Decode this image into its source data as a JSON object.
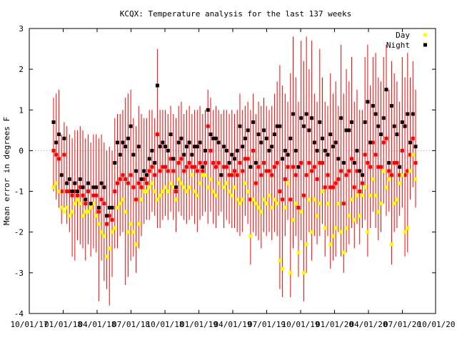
{
  "chart_data": {
    "type": "scatter",
    "title": "KCQX: Temperature analysis for the last 137 weeks",
    "xlabel": "",
    "ylabel": "Mean error in degrees F",
    "ylim": [
      -4,
      3
    ],
    "yticks": [
      "-4",
      "-3",
      "-2",
      "-1",
      "0",
      "1",
      "2",
      "3"
    ],
    "xtick_labels": [
      "10/01/17",
      "01/01/18",
      "04/01/18",
      "07/01/18",
      "10/01/18",
      "01/01/19",
      "04/01/19",
      "07/01/19",
      "10/01/19",
      "01/01/20",
      "04/01/20",
      "07/01/20",
      "10/01/20"
    ],
    "zero_line": true,
    "legend_position": "top-right",
    "colors": {
      "day": "#ffff00",
      "night": "#000000",
      "error_bar": "#ff0000",
      "zero_line": "#aaaaaa"
    },
    "series": [
      {
        "name": "Day",
        "values": [
          -0.9,
          -0.8,
          -1.0,
          -1.4,
          -1.5,
          -1.4,
          -1.6,
          -1.5,
          -1.3,
          -1.2,
          -1.3,
          -1.6,
          -1.5,
          -1.5,
          -1.4,
          -1.3,
          -1.6,
          -1.8,
          -2.0,
          -2.1,
          -2.6,
          -2.4,
          -2.0,
          -1.9,
          -1.4,
          -1.3,
          -1.2,
          -1.5,
          -2.0,
          -1.8,
          -2.0,
          -2.3,
          -1.8,
          -1.2,
          -1.0,
          -1.0,
          -0.9,
          -0.8,
          -1.0,
          -1.2,
          -1.1,
          -1.0,
          -0.9,
          -1.0,
          -0.8,
          -0.9,
          -1.2,
          -0.7,
          -0.8,
          -0.9,
          -1.0,
          -0.9,
          -0.6,
          -1.0,
          -1.1,
          -0.8,
          -0.6,
          -0.6,
          -0.9,
          -0.7,
          -1.0,
          -1.1,
          -0.8,
          -0.6,
          -0.9,
          -0.8,
          -1.0,
          -1.1,
          -0.9,
          -1.2,
          -1.3,
          -1.2,
          -0.8,
          -1.0,
          -2.1,
          -1.2,
          -1.3,
          -1.4,
          -1.5,
          -1.2,
          -1.3,
          -1.1,
          -1.4,
          -1.2,
          -1.3,
          -2.7,
          -2.9,
          -1.4,
          -0.8,
          -3.0,
          -1.7,
          -1.3,
          -2.5,
          -1.5,
          -3.0,
          -2.3,
          -1.2,
          -2.0,
          -1.2,
          -1.6,
          -1.3,
          -1.0,
          -1.9,
          -1.3,
          -2.3,
          -2.1,
          -1.9,
          -1.3,
          -2.0,
          -2.5,
          -1.9,
          -1.6,
          -1.2,
          -1.7,
          -1.1,
          -1.6,
          -1.1,
          -0.9,
          -2.0,
          -1.1,
          -0.7,
          -1.1,
          -1.5,
          -1.3,
          -0.5,
          -0.9,
          -0.7,
          -2.3,
          -1.3,
          -1.2,
          -0.8,
          -0.6,
          -2.0,
          -1.9,
          -0.5,
          -0.1,
          -0.7
        ],
        "lows": [
          -1.4,
          -1.3,
          -1.5,
          -2.0,
          -2.1,
          -2.0,
          -2.4,
          -2.2,
          -2.0,
          -1.9,
          -2.0,
          -2.3,
          -2.2,
          -2.3,
          -2.1,
          -2.0,
          -2.4,
          -2.6,
          -2.8,
          -3.0,
          -3.4,
          -3.2,
          -2.9,
          -2.7,
          -2.1,
          -2.0,
          -1.9,
          -2.3,
          -2.9,
          -2.6,
          -2.8,
          -3.1,
          -2.6,
          -1.9,
          -1.6,
          -1.6,
          -1.5,
          -1.4,
          -1.6,
          -1.9,
          -1.8,
          -1.6,
          -1.5,
          -1.6,
          -1.4,
          -1.5,
          -1.9,
          -1.3,
          -1.4,
          -1.5,
          -1.6,
          -1.5,
          -1.2,
          -1.6,
          -1.8,
          -1.4,
          -1.2,
          -1.2,
          -1.5,
          -1.3,
          -1.6,
          -1.8,
          -1.4,
          -1.2,
          -1.5,
          -1.4,
          -1.6,
          -1.8,
          -1.5,
          -1.9,
          -2.0,
          -1.9,
          -1.4,
          -1.6,
          -2.7,
          -1.8,
          -1.9,
          -2.1,
          -2.2,
          -1.8,
          -1.9,
          -1.7,
          -2.1,
          -1.8,
          -1.9,
          -3.3,
          -3.5,
          -2.0,
          -1.4,
          -3.5,
          -2.3,
          -1.9,
          -3.0,
          -2.1,
          -3.5,
          -2.8,
          -1.8,
          -2.6,
          -1.8,
          -2.2,
          -1.9,
          -1.6,
          -2.5,
          -1.9,
          -2.8,
          -2.6,
          -2.4,
          -1.8,
          -2.5,
          -2.9,
          -2.4,
          -2.1,
          -1.7,
          -2.2,
          -1.6,
          -2.1,
          -1.6,
          -1.4,
          -2.5,
          -1.6,
          -1.2,
          -1.6,
          -2.0,
          -1.8,
          -1.0,
          -1.4,
          -1.2,
          -2.7,
          -1.8,
          -1.7,
          -1.3,
          -1.1,
          -2.4,
          -2.3,
          -1.0,
          -0.6,
          -1.2
        ],
        "highs": [
          -0.4,
          -0.3,
          -0.5,
          -0.8,
          -0.9,
          -0.8,
          -1.0,
          -0.9,
          -0.7,
          -0.6,
          -0.7,
          -1.0,
          -0.9,
          -0.9,
          -0.8,
          -0.7,
          -1.0,
          -1.1,
          -1.3,
          -1.4,
          -1.9,
          -1.7,
          -1.3,
          -1.2,
          -0.8,
          -0.7,
          -0.6,
          -0.9,
          -1.3,
          -1.1,
          -1.3,
          -1.6,
          -1.1,
          -0.6,
          -0.4,
          -0.4,
          -0.4,
          -0.3,
          -0.5,
          -0.6,
          -0.5,
          -0.4,
          -0.4,
          -0.5,
          -0.3,
          -0.4,
          -0.6,
          -0.2,
          -0.3,
          -0.4,
          -0.5,
          -0.4,
          -0.1,
          -0.5,
          -0.5,
          -0.3,
          -0.1,
          -0.1,
          -0.4,
          -0.2,
          -0.5,
          -0.5,
          -0.3,
          -0.1,
          -0.4,
          -0.3,
          -0.5,
          -0.5,
          -0.4,
          -0.6,
          -0.7,
          -0.6,
          -0.3,
          -0.5,
          -1.5,
          -0.7,
          -0.8,
          -0.8,
          -0.9,
          -0.7,
          -0.8,
          -0.6,
          -0.8,
          -0.7,
          -0.8,
          -2.2,
          -2.4,
          -0.9,
          -0.3,
          -2.5,
          -1.2,
          -0.8,
          -2.0,
          -1.0,
          -2.5,
          -1.8,
          -0.7,
          -1.5,
          -0.7,
          -1.1,
          -0.8,
          -0.5,
          -1.4,
          -0.8,
          -1.8,
          -1.6,
          -1.4,
          -0.8,
          -1.5,
          -2.0,
          -1.4,
          -1.1,
          -0.7,
          -1.2,
          -0.6,
          -1.1,
          -0.6,
          -0.4,
          -1.5,
          -0.6,
          -0.2,
          -0.6,
          -1.0,
          -0.8,
          0.0,
          -0.4,
          -0.2,
          -1.8,
          -0.8,
          -0.7,
          -0.3,
          -0.1,
          -1.5,
          -1.4,
          0.0,
          0.4,
          -0.2
        ]
      },
      {
        "name": "Night",
        "values": [
          0.7,
          0.2,
          0.4,
          -0.6,
          0.3,
          -0.8,
          -0.7,
          -1.0,
          -0.8,
          -1.0,
          -0.7,
          -0.9,
          -1.2,
          -0.8,
          -1.3,
          -0.9,
          -0.9,
          -1.4,
          -0.8,
          -0.9,
          -1.6,
          -1.4,
          -1.4,
          -0.3,
          0.2,
          -0.1,
          0.2,
          0.1,
          0.3,
          0.6,
          -0.1,
          -0.5,
          0.1,
          -0.7,
          -0.5,
          -0.6,
          -0.2,
          0.0,
          -0.3,
          1.6,
          0.1,
          0.2,
          0.1,
          0.0,
          0.4,
          -0.2,
          -0.9,
          0.2,
          0.3,
          -0.1,
          0.1,
          0.2,
          -0.1,
          0.1,
          0.1,
          0.2,
          -0.4,
          0.0,
          1.0,
          0.4,
          0.3,
          0.3,
          0.2,
          -0.6,
          0.1,
          0.0,
          -0.3,
          -0.1,
          -0.2,
          0.0,
          0.6,
          0.1,
          0.3,
          0.5,
          -0.4,
          0.7,
          -0.3,
          0.4,
          0.2,
          0.5,
          0.3,
          0.0,
          0.1,
          0.4,
          0.6,
          0.6,
          -0.2,
          0.0,
          -0.1,
          0.3,
          0.9,
          0.0,
          -0.4,
          0.8,
          0.6,
          0.9,
          0.5,
          0.8,
          0.2,
          0.0,
          0.7,
          0.3,
          0.0,
          -0.1,
          0.4,
          0.1,
          0.2,
          -0.2,
          0.8,
          -0.3,
          0.5,
          0.5,
          0.7,
          -0.3,
          0.0,
          -0.5,
          -0.6,
          0.7,
          1.2,
          0.2,
          1.1,
          0.9,
          0.6,
          0.4,
          0.8,
          1.5,
          -0.3,
          1.1,
          0.6,
          0.4,
          -0.4,
          0.7,
          0.6,
          0.9,
          0.2,
          0.9,
          0.1
        ],
        "lows": [
          0.0,
          -0.5,
          -0.3,
          -1.3,
          -0.4,
          -1.4,
          -1.3,
          -1.6,
          -1.4,
          -1.6,
          -1.3,
          -1.5,
          -1.8,
          -1.4,
          -1.9,
          -1.5,
          -1.5,
          -2.0,
          -1.4,
          -1.5,
          -2.2,
          -2.0,
          -2.0,
          -0.9,
          -0.4,
          -0.7,
          -0.4,
          -0.5,
          -0.3,
          0.0,
          -0.7,
          -1.1,
          -0.5,
          -1.3,
          -1.1,
          -1.2,
          -0.8,
          -0.6,
          -0.9,
          1.0,
          -0.5,
          -0.4,
          -0.5,
          -0.6,
          -0.2,
          -0.8,
          -1.5,
          -0.4,
          -0.3,
          -0.7,
          -0.5,
          -0.4,
          -0.7,
          -0.5,
          -0.5,
          -0.4,
          -1.0,
          -0.6,
          0.4,
          -0.2,
          -0.3,
          -0.3,
          -0.4,
          -1.2,
          -0.5,
          -0.6,
          -0.9,
          -0.7,
          -0.8,
          -0.6,
          0.0,
          -0.5,
          -0.3,
          -0.1,
          -1.0,
          0.1,
          -0.9,
          -0.2,
          -0.4,
          -0.1,
          -0.3,
          -0.6,
          -0.5,
          -0.2,
          0.0,
          0.0,
          -0.8,
          -0.6,
          -0.7,
          -0.3,
          0.3,
          -0.6,
          -1.0,
          0.2,
          0.0,
          0.3,
          -0.1,
          0.2,
          -0.4,
          -0.6,
          0.1,
          -0.3,
          -0.6,
          -0.7,
          -0.2,
          -0.5,
          -0.4,
          -0.8,
          0.2,
          -0.9,
          -0.1,
          -0.1,
          0.1,
          -0.9,
          -0.6,
          -1.1,
          -1.2,
          0.1,
          0.6,
          -0.4,
          0.5,
          0.3,
          0.0,
          -0.2,
          0.2,
          0.9,
          -0.9,
          0.5,
          0.0,
          -0.2,
          -1.0,
          0.1,
          0.0,
          0.3,
          -0.4,
          0.3,
          -0.5
        ],
        "highs": [
          1.4,
          0.9,
          1.1,
          0.1,
          1.0,
          -0.2,
          -0.1,
          -0.4,
          -0.2,
          -0.4,
          -0.1,
          -0.3,
          -0.6,
          -0.2,
          -0.7,
          -0.3,
          -0.3,
          -0.8,
          -0.2,
          -0.3,
          -1.0,
          -0.8,
          -0.8,
          0.3,
          0.8,
          0.5,
          0.8,
          0.7,
          0.9,
          1.2,
          0.5,
          0.1,
          0.7,
          -0.1,
          0.1,
          0.0,
          0.4,
          0.6,
          0.3,
          2.2,
          0.7,
          0.8,
          0.7,
          0.6,
          1.0,
          0.4,
          -0.3,
          0.8,
          0.9,
          0.5,
          0.7,
          0.8,
          0.5,
          0.7,
          0.7,
          0.8,
          0.2,
          0.6,
          1.6,
          1.0,
          0.9,
          0.9,
          0.8,
          0.0,
          0.7,
          0.6,
          0.3,
          0.5,
          0.4,
          0.6,
          1.2,
          0.7,
          0.9,
          1.1,
          0.2,
          1.3,
          0.3,
          1.0,
          0.8,
          1.1,
          0.9,
          0.6,
          0.7,
          1.0,
          1.2,
          1.2,
          0.4,
          0.6,
          0.5,
          0.9,
          1.5,
          0.6,
          0.2,
          1.4,
          1.2,
          1.5,
          1.1,
          1.4,
          0.8,
          0.6,
          1.3,
          0.9,
          0.6,
          0.5,
          1.0,
          0.7,
          0.8,
          0.4,
          1.4,
          0.3,
          1.1,
          1.1,
          1.3,
          0.3,
          0.6,
          0.1,
          0.0,
          1.3,
          1.8,
          0.8,
          1.7,
          1.5,
          1.2,
          1.0,
          1.4,
          2.1,
          0.3,
          1.7,
          1.2,
          1.0,
          0.2,
          1.3,
          1.2,
          1.5,
          0.8,
          1.5,
          0.7
        ]
      }
    ],
    "error_bars": {
      "mean": [
        0.0,
        -0.1,
        -0.2,
        -1.0,
        -0.1,
        -1.0,
        -1.0,
        -1.1,
        -1.0,
        -1.1,
        -0.9,
        -1.1,
        -1.3,
        -1.0,
        -1.4,
        -1.1,
        -1.1,
        -1.5,
        -1.2,
        -1.3,
        -1.8,
        -1.6,
        -1.7,
        -1.0,
        -0.8,
        -0.7,
        -0.6,
        -0.7,
        -0.8,
        -0.6,
        -0.9,
        -1.2,
        -0.8,
        -0.9,
        -0.7,
        -0.8,
        -0.5,
        -0.4,
        -0.6,
        0.4,
        -0.5,
        -0.4,
        -0.4,
        -0.5,
        -0.2,
        -0.5,
        -1.0,
        -0.3,
        -0.2,
        -0.5,
        -0.4,
        -0.3,
        -0.4,
        -0.4,
        -0.5,
        -0.3,
        -0.5,
        -0.3,
        0.6,
        0.0,
        -0.3,
        -0.4,
        -0.3,
        -0.6,
        -0.4,
        -0.4,
        -0.6,
        -0.6,
        -0.5,
        -0.6,
        -0.3,
        -0.5,
        -0.2,
        -0.2,
        -1.2,
        0.0,
        -0.8,
        -0.4,
        -0.6,
        -0.3,
        -0.5,
        -0.5,
        -0.6,
        -0.4,
        -0.3,
        -1.0,
        -1.2,
        -0.7,
        -0.4,
        -1.2,
        -0.4,
        -0.6,
        -1.4,
        -0.3,
        -1.1,
        -0.6,
        -0.3,
        -0.5,
        -0.4,
        -0.7,
        -0.3,
        -0.3,
        -0.9,
        -0.6,
        -0.9,
        -0.9,
        -0.8,
        -0.7,
        -0.5,
        -1.3,
        -0.6,
        -0.5,
        -0.2,
        -0.9,
        -0.5,
        -1.0,
        -0.8,
        -0.1,
        -0.3,
        -0.4,
        0.2,
        -0.1,
        -0.4,
        -0.4,
        0.2,
        0.3,
        -0.5,
        -0.6,
        -0.3,
        -0.3,
        -0.6,
        0.0,
        -0.6,
        -0.5,
        -0.1,
        0.3,
        -0.3
      ],
      "low": [
        -1.0,
        -1.2,
        -1.4,
        -1.8,
        -1.4,
        -1.8,
        -2.0,
        -2.6,
        -2.7,
        -2.2,
        -2.3,
        -2.4,
        -2.7,
        -2.3,
        -2.6,
        -2.4,
        -2.5,
        -3.7,
        -2.7,
        -3.2,
        -3.4,
        -3.8,
        -3.1,
        -2.4,
        -2.4,
        -2.1,
        -2.0,
        -3.3,
        -3.1,
        -2.7,
        -2.6,
        -3.0,
        -2.4,
        -2.1,
        -1.8,
        -1.7,
        -1.7,
        -1.5,
        -1.6,
        -1.9,
        -1.9,
        -1.7,
        -1.6,
        -1.7,
        -1.5,
        -1.7,
        -2.0,
        -1.5,
        -1.6,
        -1.7,
        -1.8,
        -1.7,
        -1.6,
        -1.8,
        -2.0,
        -1.7,
        -1.6,
        -1.5,
        -1.8,
        -1.5,
        -1.8,
        -1.9,
        -1.6,
        -1.5,
        -1.9,
        -1.7,
        -1.8,
        -1.9,
        -1.9,
        -2.0,
        -2.1,
        -2.0,
        -1.6,
        -1.8,
        -2.8,
        -2.0,
        -2.1,
        -2.2,
        -2.4,
        -2.0,
        -2.1,
        -2.0,
        -2.2,
        -2.0,
        -2.1,
        -3.4,
        -3.6,
        -2.1,
        -1.7,
        -3.6,
        -2.4,
        -2.1,
        -3.1,
        -2.2,
        -3.7,
        -3.0,
        -2.0,
        -2.7,
        -2.1,
        -2.3,
        -2.1,
        -1.8,
        -2.6,
        -2.1,
        -2.9,
        -2.7,
        -2.6,
        -2.0,
        -2.6,
        -3.0,
        -2.5,
        -2.3,
        -1.9,
        -2.4,
        -1.8,
        -2.3,
        -1.9,
        -1.7,
        -2.6,
        -1.9,
        -1.5,
        -1.9,
        -2.2,
        -2.0,
        -1.3,
        -1.6,
        -1.5,
        -2.8,
        -2.0,
        -1.9,
        -1.6,
        -1.4,
        -2.6,
        -2.5,
        -1.2,
        -0.9,
        -1.4
      ],
      "high": [
        1.3,
        1.4,
        1.5,
        0.4,
        0.7,
        0.6,
        0.4,
        0.3,
        0.5,
        0.5,
        0.6,
        0.5,
        0.3,
        0.4,
        0.2,
        0.4,
        0.4,
        0.3,
        0.4,
        0.2,
        0.0,
        0.1,
        0.0,
        0.8,
        0.9,
        0.9,
        1.0,
        1.3,
        1.4,
        1.5,
        0.8,
        0.6,
        1.1,
        0.9,
        0.8,
        0.8,
        1.0,
        1.0,
        0.8,
        2.5,
        1.0,
        1.0,
        1.0,
        0.9,
        1.1,
        0.9,
        0.8,
        1.1,
        1.2,
        0.9,
        1.0,
        1.1,
        0.9,
        1.0,
        1.0,
        1.1,
        0.9,
        1.0,
        1.5,
        1.3,
        1.0,
        1.1,
        1.0,
        0.9,
        1.0,
        1.0,
        0.9,
        1.0,
        0.9,
        1.0,
        1.4,
        1.0,
        1.1,
        1.2,
        1.0,
        1.4,
        0.9,
        1.2,
        1.1,
        1.3,
        1.1,
        1.0,
        1.1,
        1.4,
        1.7,
        2.1,
        1.6,
        1.4,
        1.2,
        1.9,
        2.8,
        1.8,
        1.2,
        2.7,
        2.2,
        2.8,
        2.0,
        2.7,
        1.4,
        1.2,
        2.5,
        1.8,
        1.2,
        1.1,
        1.9,
        1.4,
        1.7,
        1.1,
        2.6,
        1.4,
        2.0,
        1.7,
        2.3,
        1.2,
        1.5,
        1.0,
        1.0,
        2.3,
        2.6,
        1.6,
        2.3,
        2.4,
        1.8,
        1.7,
        2.3,
        2.6,
        1.5,
        2.2,
        1.9,
        1.7,
        1.2,
        2.3,
        1.8,
        2.4,
        1.8,
        2.2,
        1.5
      ]
    }
  }
}
